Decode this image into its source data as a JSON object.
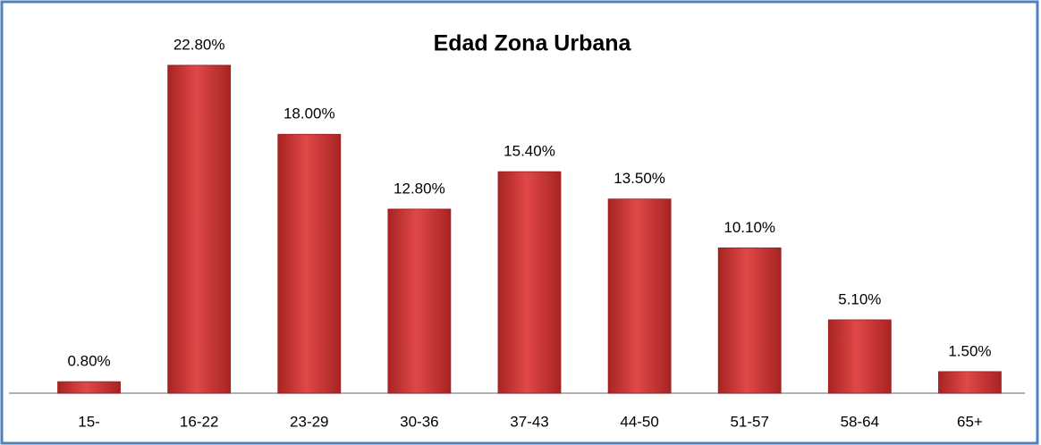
{
  "chart_data": {
    "type": "bar",
    "title": "Edad Zona Urbana",
    "categories": [
      "15-",
      "16-22",
      "23-29",
      "30-36",
      "37-43",
      "44-50",
      "51-57",
      "58-64",
      "65+"
    ],
    "values": [
      0.8,
      22.8,
      18.0,
      12.8,
      15.4,
      13.5,
      10.1,
      5.1,
      1.5
    ],
    "value_labels": [
      "0.80%",
      "22.80%",
      "18.00%",
      "12.80%",
      "15.40%",
      "13.50%",
      "10.10%",
      "5.10%",
      "1.50%"
    ],
    "color": "#d94040"
  }
}
